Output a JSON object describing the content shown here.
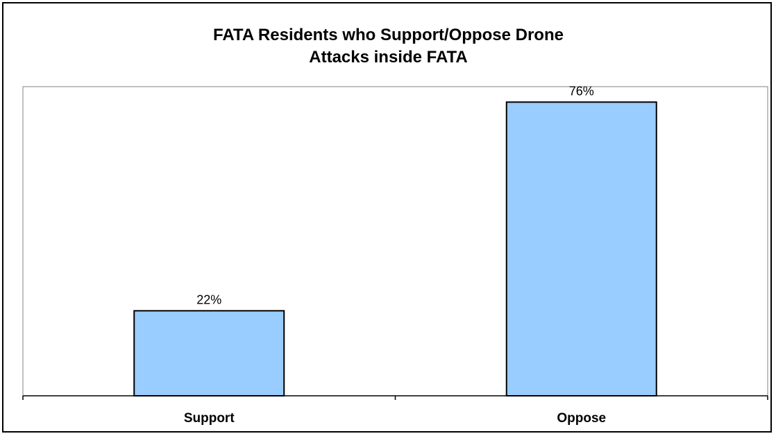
{
  "chart_data": {
    "type": "bar",
    "title_lines": [
      "FATA Residents who Support/Oppose Drone",
      "Attacks inside FATA"
    ],
    "categories": [
      "Support",
      "Oppose"
    ],
    "values": [
      22,
      76
    ],
    "data_labels": [
      "22%",
      "76%"
    ],
    "xlabel": "",
    "ylabel": "",
    "ylim": [
      0,
      80
    ],
    "grid": false,
    "legend": "none",
    "bar_color": "#99ccff",
    "bar_stroke": "#000000"
  }
}
